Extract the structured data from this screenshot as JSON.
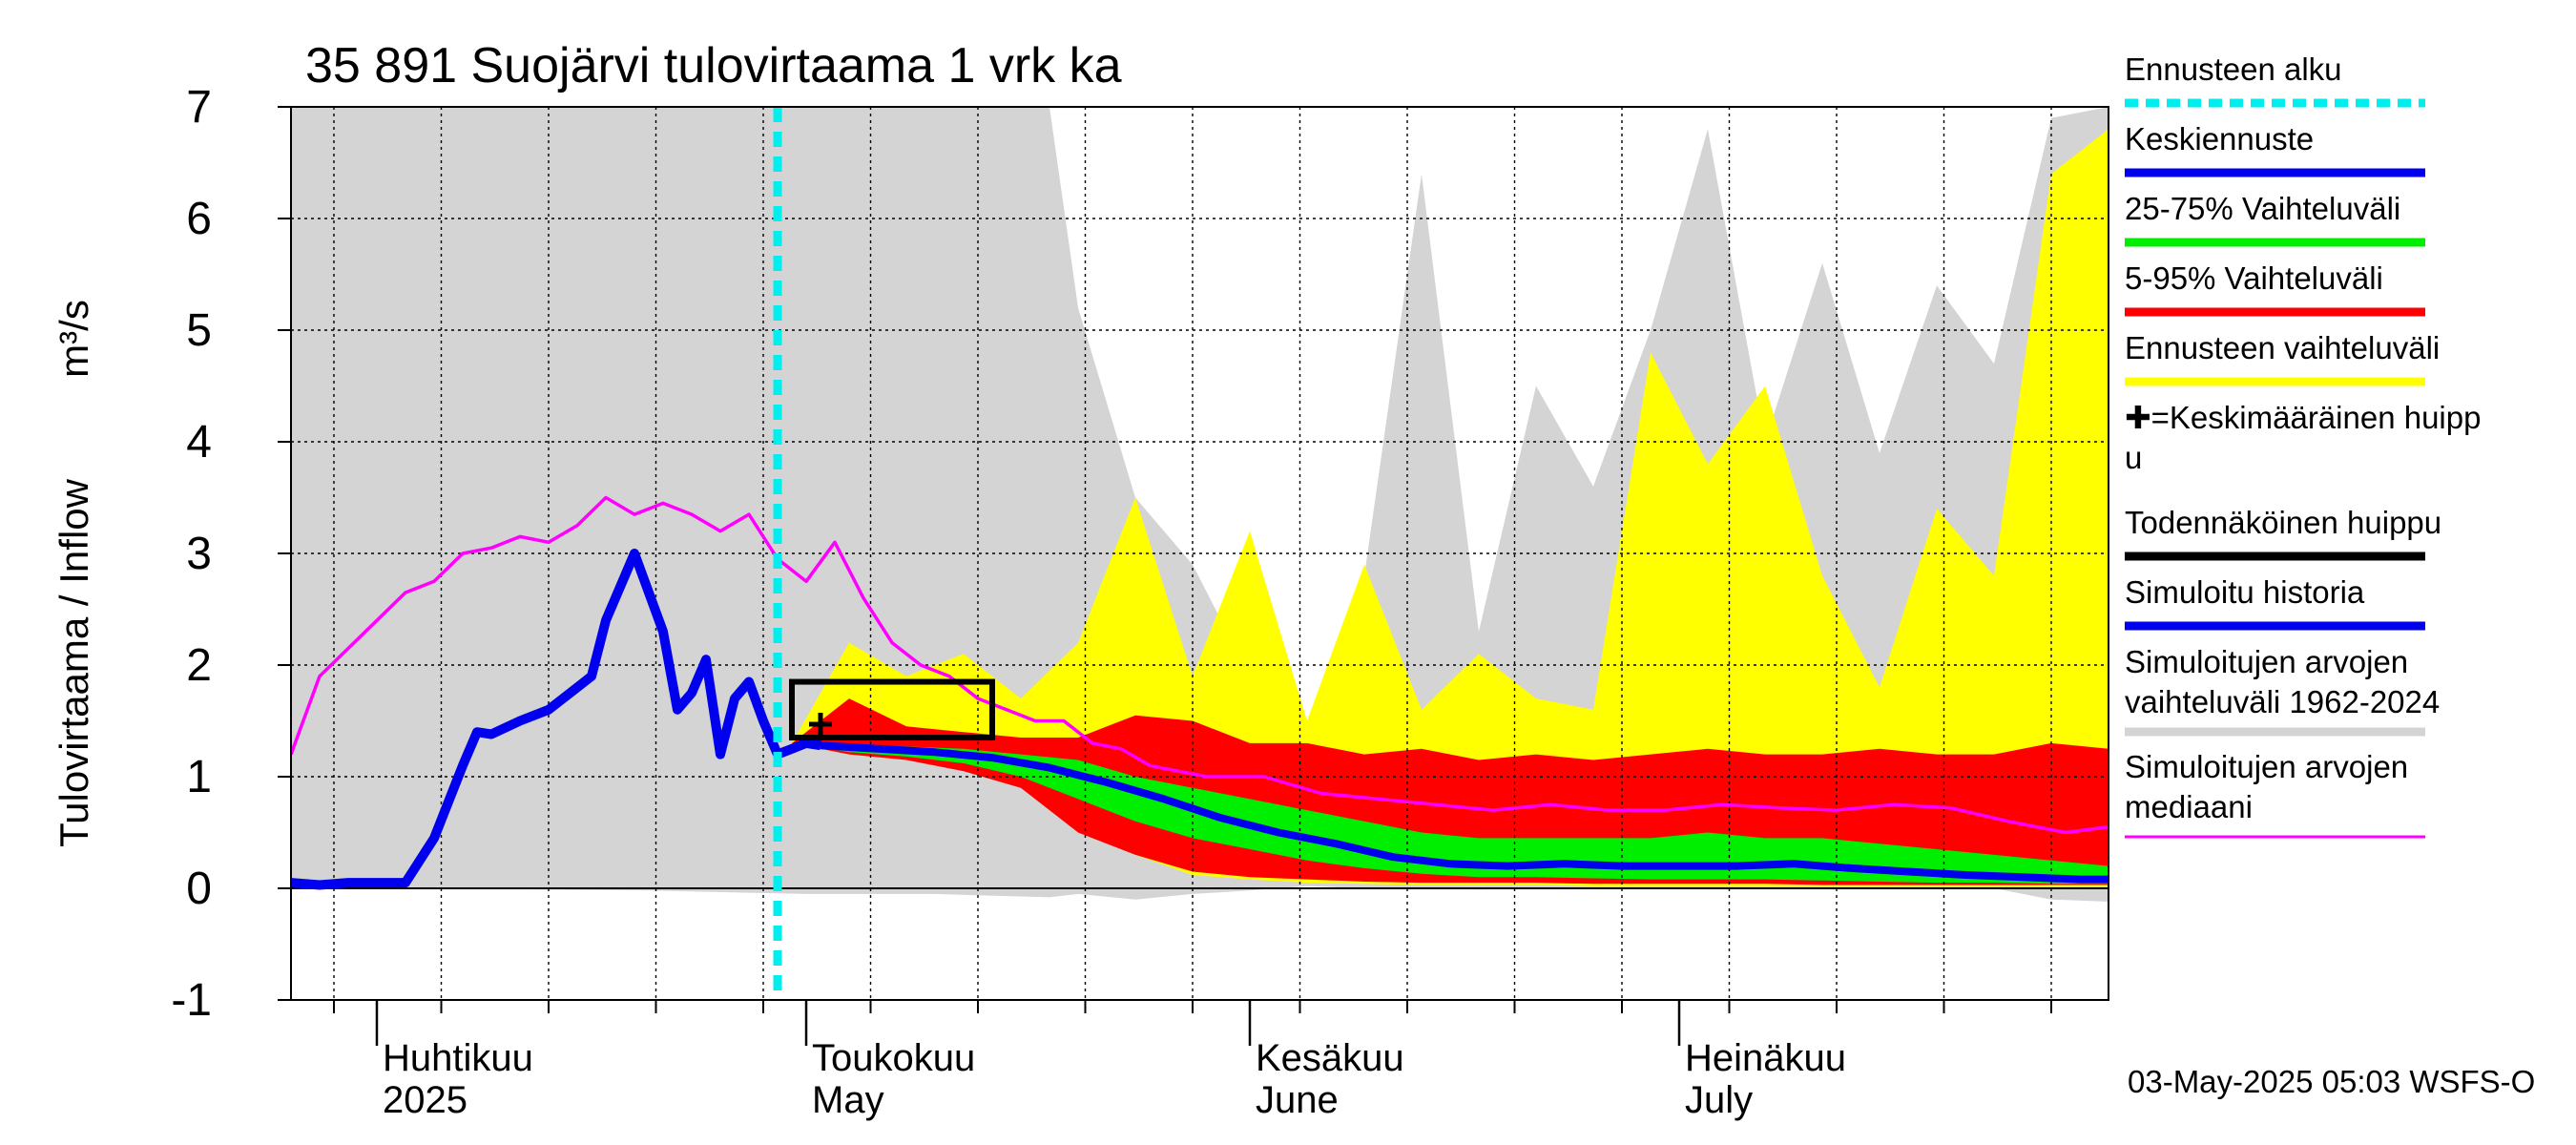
{
  "chart_data": {
    "type": "area",
    "title": "35 891 Suojärvi tulovirtaama 1 vrk ka",
    "ylabel": "Tulovirtaama / Inflow",
    "yunit": "m³/s",
    "ylim": [
      -1,
      7
    ],
    "yticks": [
      "-1",
      "0",
      "1",
      "2",
      "3",
      "4",
      "5",
      "6",
      "7"
    ],
    "xlim": [
      "2025-03-26",
      "2025-07-31"
    ],
    "grid": true,
    "legend_position": "right",
    "month_labels": [
      {
        "fi": "Huhtikuu",
        "en": "2025",
        "date": "2025-04-01"
      },
      {
        "fi": "Toukokuu",
        "en": "May",
        "date": "2025-05-01"
      },
      {
        "fi": "Kesäkuu",
        "en": "June",
        "date": "2025-06-01"
      },
      {
        "fi": "Heinäkuu",
        "en": "July",
        "date": "2025-07-01"
      }
    ],
    "forecast_start": "2025-04-29",
    "probable_peak_box": {
      "x_start": "2025-04-30",
      "x_end": "2025-05-14",
      "y_min": 1.35,
      "y_max": 1.85
    },
    "mean_peak": {
      "date": "2025-05-02",
      "value": 1.47
    },
    "series": [
      {
        "name": "Simuloitu historia",
        "color": "#0000ee",
        "points": [
          [
            "2025-03-26",
            0.05
          ],
          [
            "2025-03-28",
            0.03
          ],
          [
            "2025-03-30",
            0.05
          ],
          [
            "2025-04-01",
            0.05
          ],
          [
            "2025-04-03",
            0.05
          ],
          [
            "2025-04-05",
            0.45
          ],
          [
            "2025-04-07",
            1.1
          ],
          [
            "2025-04-08",
            1.4
          ],
          [
            "2025-04-09",
            1.38
          ],
          [
            "2025-04-11",
            1.5
          ],
          [
            "2025-04-13",
            1.6
          ],
          [
            "2025-04-15",
            1.8
          ],
          [
            "2025-04-16",
            1.9
          ],
          [
            "2025-04-17",
            2.4
          ],
          [
            "2025-04-19",
            3.0
          ],
          [
            "2025-04-21",
            2.3
          ],
          [
            "2025-04-22",
            1.6
          ],
          [
            "2025-04-23",
            1.75
          ],
          [
            "2025-04-24",
            2.05
          ],
          [
            "2025-04-25",
            1.2
          ],
          [
            "2025-04-26",
            1.7
          ],
          [
            "2025-04-27",
            1.85
          ],
          [
            "2025-04-28",
            1.5
          ],
          [
            "2025-04-29",
            1.2
          ],
          [
            "2025-04-30",
            1.25
          ],
          [
            "2025-05-01",
            1.3
          ],
          [
            "2025-05-02",
            1.28
          ]
        ]
      },
      {
        "name": "Keskiennuste",
        "color": "#0000ee",
        "points": [
          [
            "2025-05-02",
            1.28
          ],
          [
            "2025-05-06",
            1.25
          ],
          [
            "2025-05-10",
            1.22
          ],
          [
            "2025-05-14",
            1.17
          ],
          [
            "2025-05-18",
            1.08
          ],
          [
            "2025-05-22",
            0.95
          ],
          [
            "2025-05-26",
            0.8
          ],
          [
            "2025-05-30",
            0.63
          ],
          [
            "2025-06-03",
            0.5
          ],
          [
            "2025-06-07",
            0.4
          ],
          [
            "2025-06-11",
            0.28
          ],
          [
            "2025-06-15",
            0.22
          ],
          [
            "2025-06-19",
            0.2
          ],
          [
            "2025-06-23",
            0.22
          ],
          [
            "2025-06-27",
            0.2
          ],
          [
            "2025-07-01",
            0.2
          ],
          [
            "2025-07-05",
            0.2
          ],
          [
            "2025-07-09",
            0.22
          ],
          [
            "2025-07-13",
            0.18
          ],
          [
            "2025-07-17",
            0.15
          ],
          [
            "2025-07-21",
            0.12
          ],
          [
            "2025-07-25",
            0.1
          ],
          [
            "2025-07-29",
            0.08
          ],
          [
            "2025-07-31",
            0.08
          ]
        ]
      },
      {
        "name": "Simuloitujen arvojen mediaani",
        "color": "#ff00ff",
        "points": [
          [
            "2025-03-26",
            1.2
          ],
          [
            "2025-03-28",
            1.9
          ],
          [
            "2025-03-30",
            2.15
          ],
          [
            "2025-04-01",
            2.4
          ],
          [
            "2025-04-03",
            2.65
          ],
          [
            "2025-04-05",
            2.75
          ],
          [
            "2025-04-07",
            3.0
          ],
          [
            "2025-04-09",
            3.05
          ],
          [
            "2025-04-11",
            3.15
          ],
          [
            "2025-04-13",
            3.1
          ],
          [
            "2025-04-15",
            3.25
          ],
          [
            "2025-04-17",
            3.5
          ],
          [
            "2025-04-19",
            3.35
          ],
          [
            "2025-04-21",
            3.45
          ],
          [
            "2025-04-23",
            3.35
          ],
          [
            "2025-04-25",
            3.2
          ],
          [
            "2025-04-27",
            3.35
          ],
          [
            "2025-04-29",
            2.95
          ],
          [
            "2025-05-01",
            2.75
          ],
          [
            "2025-05-03",
            3.1
          ],
          [
            "2025-05-05",
            2.6
          ],
          [
            "2025-05-07",
            2.2
          ],
          [
            "2025-05-09",
            2.0
          ],
          [
            "2025-05-11",
            1.9
          ],
          [
            "2025-05-13",
            1.7
          ],
          [
            "2025-05-15",
            1.6
          ],
          [
            "2025-05-17",
            1.5
          ],
          [
            "2025-05-19",
            1.5
          ],
          [
            "2025-05-21",
            1.3
          ],
          [
            "2025-05-23",
            1.25
          ],
          [
            "2025-05-25",
            1.1
          ],
          [
            "2025-05-27",
            1.05
          ],
          [
            "2025-05-29",
            1.0
          ],
          [
            "2025-06-02",
            1.0
          ],
          [
            "2025-06-06",
            0.85
          ],
          [
            "2025-06-10",
            0.8
          ],
          [
            "2025-06-14",
            0.75
          ],
          [
            "2025-06-18",
            0.7
          ],
          [
            "2025-06-22",
            0.75
          ],
          [
            "2025-06-26",
            0.7
          ],
          [
            "2025-06-30",
            0.7
          ],
          [
            "2025-07-04",
            0.75
          ],
          [
            "2025-07-08",
            0.72
          ],
          [
            "2025-07-12",
            0.7
          ],
          [
            "2025-07-16",
            0.75
          ],
          [
            "2025-07-20",
            0.72
          ],
          [
            "2025-07-24",
            0.6
          ],
          [
            "2025-07-28",
            0.5
          ],
          [
            "2025-07-31",
            0.55
          ]
        ]
      }
    ],
    "bands": [
      {
        "name": "Simuloitujen arvojen vaihteluväli 1962-2024",
        "color": "#d4d4d4",
        "x": [
          "2025-03-26",
          "2025-04-05",
          "2025-04-20",
          "2025-05-01",
          "2025-05-10",
          "2025-05-18",
          "2025-05-20",
          "2025-05-24",
          "2025-05-28",
          "2025-06-01",
          "2025-06-05",
          "2025-06-09",
          "2025-06-13",
          "2025-06-17",
          "2025-06-21",
          "2025-06-25",
          "2025-06-29",
          "2025-07-03",
          "2025-07-07",
          "2025-07-11",
          "2025-07-15",
          "2025-07-19",
          "2025-07-23",
          "2025-07-27",
          "2025-07-31"
        ],
        "upper": [
          7,
          7,
          7,
          7,
          7,
          7,
          5.2,
          3.5,
          2.9,
          1.9,
          1.4,
          2.8,
          6.4,
          2.3,
          4.5,
          3.6,
          5.0,
          6.8,
          4.0,
          5.6,
          3.9,
          5.4,
          4.7,
          6.9,
          7.0
        ],
        "lower": [
          0.05,
          0,
          -0.02,
          -0.05,
          -0.05,
          -0.08,
          -0.05,
          -0.1,
          -0.05,
          -0.02,
          0.02,
          0.0,
          0.0,
          -0.01,
          0.0,
          0.0,
          0.0,
          0.0,
          0.0,
          0.0,
          0.0,
          0.0,
          0.0,
          -0.1,
          -0.12
        ]
      },
      {
        "name": "Ennusteen vaihteluväli",
        "color": "#ffff00",
        "x": [
          "2025-04-30",
          "2025-05-04",
          "2025-05-08",
          "2025-05-12",
          "2025-05-16",
          "2025-05-20",
          "2025-05-24",
          "2025-05-28",
          "2025-06-01",
          "2025-06-05",
          "2025-06-09",
          "2025-06-13",
          "2025-06-17",
          "2025-06-21",
          "2025-06-25",
          "2025-06-29",
          "2025-07-03",
          "2025-07-07",
          "2025-07-11",
          "2025-07-15",
          "2025-07-19",
          "2025-07-23",
          "2025-07-27",
          "2025-07-31"
        ],
        "upper": [
          1.3,
          2.2,
          1.9,
          2.1,
          1.7,
          2.2,
          3.5,
          1.9,
          3.2,
          1.5,
          2.9,
          1.6,
          2.1,
          1.7,
          1.6,
          4.8,
          3.8,
          4.5,
          2.8,
          1.8,
          3.4,
          2.8,
          6.4,
          6.8
        ],
        "lower": [
          1.3,
          1.2,
          1.15,
          1.1,
          1.0,
          0.7,
          0.3,
          0.12,
          0.08,
          0.05,
          0.04,
          0.03,
          0.03,
          0.03,
          0.02,
          0.02,
          0.02,
          0.02,
          0.02,
          0.02,
          0.02,
          0.02,
          0.02,
          0.02
        ]
      },
      {
        "name": "5-95% Vaihteluväli",
        "color": "#ff0000",
        "x": [
          "2025-04-30",
          "2025-05-04",
          "2025-05-08",
          "2025-05-12",
          "2025-05-16",
          "2025-05-20",
          "2025-05-24",
          "2025-05-28",
          "2025-06-01",
          "2025-06-05",
          "2025-06-09",
          "2025-06-13",
          "2025-06-17",
          "2025-06-21",
          "2025-06-25",
          "2025-06-29",
          "2025-07-03",
          "2025-07-07",
          "2025-07-11",
          "2025-07-15",
          "2025-07-19",
          "2025-07-23",
          "2025-07-27",
          "2025-07-31"
        ],
        "upper": [
          1.3,
          1.7,
          1.45,
          1.4,
          1.35,
          1.35,
          1.55,
          1.5,
          1.3,
          1.3,
          1.2,
          1.25,
          1.15,
          1.2,
          1.15,
          1.2,
          1.25,
          1.2,
          1.2,
          1.25,
          1.2,
          1.2,
          1.3,
          1.25
        ],
        "lower": [
          1.3,
          1.2,
          1.15,
          1.05,
          0.9,
          0.5,
          0.3,
          0.15,
          0.1,
          0.08,
          0.06,
          0.05,
          0.05,
          0.05,
          0.04,
          0.04,
          0.04,
          0.04,
          0.03,
          0.03,
          0.03,
          0.03,
          0.03,
          0.03
        ]
      },
      {
        "name": "25-75% Vaihteluväli",
        "color": "#00ee00",
        "x": [
          "2025-04-30",
          "2025-05-04",
          "2025-05-08",
          "2025-05-12",
          "2025-05-16",
          "2025-05-20",
          "2025-05-24",
          "2025-05-28",
          "2025-06-01",
          "2025-06-05",
          "2025-06-09",
          "2025-06-13",
          "2025-06-17",
          "2025-06-21",
          "2025-06-25",
          "2025-06-29",
          "2025-07-03",
          "2025-07-07",
          "2025-07-11",
          "2025-07-15",
          "2025-07-19",
          "2025-07-23",
          "2025-07-27",
          "2025-07-31"
        ],
        "upper": [
          1.3,
          1.28,
          1.27,
          1.25,
          1.2,
          1.15,
          1.0,
          0.9,
          0.8,
          0.7,
          0.6,
          0.5,
          0.45,
          0.45,
          0.45,
          0.45,
          0.5,
          0.45,
          0.45,
          0.4,
          0.35,
          0.3,
          0.25,
          0.2
        ],
        "lower": [
          1.3,
          1.22,
          1.18,
          1.12,
          1.0,
          0.8,
          0.6,
          0.45,
          0.35,
          0.25,
          0.18,
          0.13,
          0.1,
          0.1,
          0.09,
          0.08,
          0.08,
          0.08,
          0.07,
          0.06,
          0.05,
          0.05,
          0.04,
          0.04
        ]
      }
    ],
    "legend": [
      {
        "label": "Ennusteen alku",
        "color": "#00eeee",
        "style": "dotted"
      },
      {
        "label": "Keskiennuste",
        "color": "#0000ee",
        "style": "line"
      },
      {
        "label": "25-75% Vaihteluväli",
        "color": "#00ee00",
        "style": "line"
      },
      {
        "label": "5-95% Vaihteluväli",
        "color": "#ff0000",
        "style": "line"
      },
      {
        "label": "Ennusteen vaihteluväli",
        "color": "#ffff00",
        "style": "line"
      },
      {
        "label": "✚=Keskimääräinen huipp",
        "label2": "u",
        "color": "#000000",
        "style": "none"
      },
      {
        "label": "Todennäköinen huippu",
        "color": "#000000",
        "style": "line"
      },
      {
        "label": "Simuloitu historia",
        "color": "#0000ee",
        "style": "line"
      },
      {
        "label": "Simuloitujen arvojen",
        "label2": "vaihteluväli 1962-2024",
        "color": "#d4d4d4",
        "style": "line"
      },
      {
        "label": "Simuloitujen arvojen",
        "label2": "mediaani",
        "color": "#ff00ff",
        "style": "thin"
      }
    ]
  },
  "footer": {
    "timestamp": "03-May-2025 05:03 WSFS-O"
  }
}
